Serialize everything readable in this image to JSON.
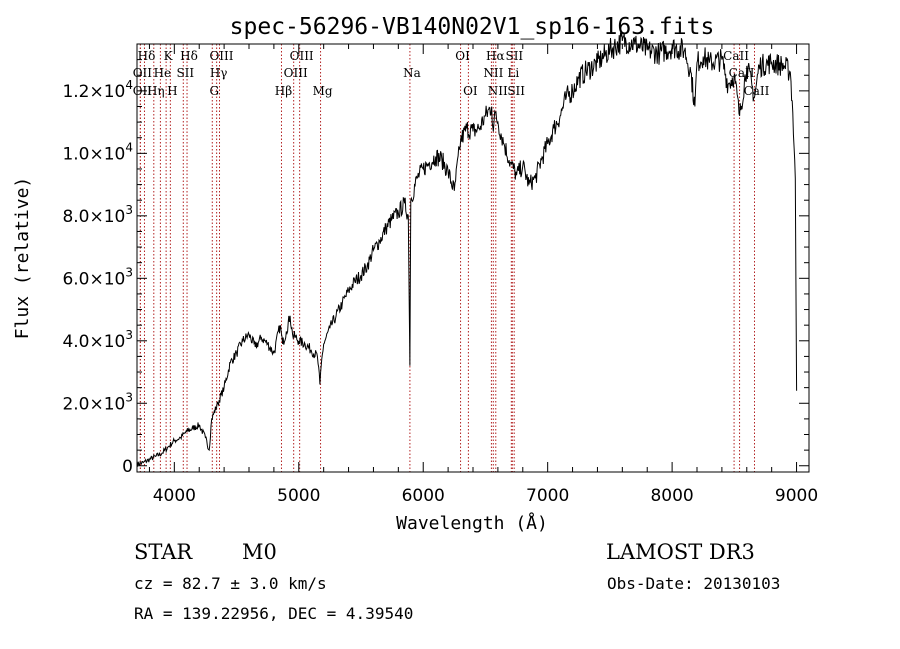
{
  "chart_data": {
    "type": "line",
    "title": "spec-56296-VB140N02V1_sp16-163.fits",
    "xlabel": "Wavelength (Å)",
    "ylabel": "Flux (relative)",
    "xlim": [
      3700,
      9100
    ],
    "ylim": [
      -200,
      13500
    ],
    "x_ticks": [
      4000,
      5000,
      6000,
      7000,
      8000,
      9000
    ],
    "x_tick_labels": [
      "4000",
      "5000",
      "6000",
      "7000",
      "8000",
      "9000"
    ],
    "y_ticks": [
      0,
      2000,
      4000,
      6000,
      8000,
      10000,
      12000
    ],
    "y_tick_labels": [
      {
        "mant": "0",
        "exp": ""
      },
      {
        "mant": "2.0×10",
        "exp": "3"
      },
      {
        "mant": "4.0×10",
        "exp": "3"
      },
      {
        "mant": "6.0×10",
        "exp": "3"
      },
      {
        "mant": "8.0×10",
        "exp": "3"
      },
      {
        "mant": "1.0×10",
        "exp": "4"
      },
      {
        "mant": "1.2×10",
        "exp": "4"
      }
    ],
    "series": [
      {
        "name": "spectrum",
        "x": [
          3700,
          3750,
          3800,
          3850,
          3900,
          3950,
          4000,
          4050,
          4100,
          4150,
          4200,
          4250,
          4280,
          4300,
          4350,
          4400,
          4450,
          4500,
          4550,
          4600,
          4650,
          4700,
          4750,
          4800,
          4850,
          4870,
          4900,
          4930,
          4950,
          5000,
          5050,
          5100,
          5150,
          5170,
          5180,
          5200,
          5250,
          5300,
          5350,
          5400,
          5450,
          5500,
          5550,
          5600,
          5650,
          5700,
          5750,
          5800,
          5850,
          5880,
          5893,
          5900,
          5950,
          6000,
          6050,
          6100,
          6150,
          6200,
          6250,
          6300,
          6350,
          6400,
          6450,
          6500,
          6550,
          6563,
          6580,
          6600,
          6650,
          6700,
          6750,
          6800,
          6850,
          6900,
          6950,
          7000,
          7050,
          7100,
          7150,
          7200,
          7250,
          7300,
          7400,
          7500,
          7600,
          7700,
          7800,
          7900,
          8000,
          8100,
          8150,
          8183,
          8200,
          8250,
          8300,
          8400,
          8450,
          8498,
          8542,
          8600,
          8662,
          8700,
          8800,
          8900,
          8950,
          8970,
          8990,
          9000
        ],
        "y": [
          50,
          100,
          200,
          300,
          400,
          600,
          800,
          900,
          1100,
          1200,
          1300,
          900,
          500,
          1500,
          2000,
          2500,
          3300,
          3600,
          4000,
          4200,
          3800,
          4100,
          3900,
          3600,
          4500,
          3900,
          4300,
          4800,
          4200,
          4000,
          3900,
          3700,
          3500,
          2600,
          3200,
          3900,
          4400,
          4800,
          5200,
          5600,
          5900,
          6100,
          6400,
          6900,
          7200,
          7600,
          7900,
          8100,
          8400,
          8000,
          3200,
          8500,
          9200,
          9500,
          9700,
          9900,
          9800,
          9400,
          8800,
          10400,
          10800,
          10700,
          10800,
          11200,
          11500,
          10700,
          11300,
          11000,
          10300,
          9700,
          9300,
          9600,
          9000,
          9200,
          9800,
          10300,
          10800,
          11200,
          11800,
          12000,
          12400,
          12600,
          12900,
          13300,
          13600,
          13500,
          13300,
          13200,
          13400,
          13300,
          12600,
          11500,
          12900,
          13100,
          12900,
          13000,
          12200,
          12500,
          11200,
          12800,
          11800,
          12800,
          12900,
          12800,
          12600,
          11300,
          9200,
          2400
        ]
      }
    ],
    "emission_lines": [
      {
        "name": "Hδ",
        "wl": 3760,
        "row": 0
      },
      {
        "name": "K",
        "wl": 3934,
        "row": 0
      },
      {
        "name": "Hδ",
        "wl": 4102,
        "row": 0
      },
      {
        "name": "OIII",
        "wl": 4363,
        "row": 0
      },
      {
        "name": "OIII",
        "wl": 5007,
        "row": 0
      },
      {
        "name": "OI",
        "wl": 6300,
        "row": 0
      },
      {
        "name": "Hα",
        "wl": 6563,
        "row": 0
      },
      {
        "name": "SII",
        "wl": 6716,
        "row": 0
      },
      {
        "name": "CaII",
        "wl": 8498,
        "row": 0
      },
      {
        "name": "OII",
        "wl": 3727,
        "row": 1
      },
      {
        "name": "He",
        "wl": 3888,
        "row": 1
      },
      {
        "name": "SII",
        "wl": 4072,
        "row": 1
      },
      {
        "name": "Hγ",
        "wl": 4340,
        "row": 1
      },
      {
        "name": "OIII",
        "wl": 4959,
        "row": 1
      },
      {
        "name": "Na",
        "wl": 5893,
        "row": 1
      },
      {
        "name": "NII",
        "wl": 6548,
        "row": 1
      },
      {
        "name": "Li",
        "wl": 6708,
        "row": 1
      },
      {
        "name": "CaII",
        "wl": 8542,
        "row": 1
      },
      {
        "name": "OII",
        "wl": 3727,
        "row": 2
      },
      {
        "name": "Hη",
        "wl": 3835,
        "row": 2
      },
      {
        "name": "H",
        "wl": 3968,
        "row": 2
      },
      {
        "name": "G",
        "wl": 4305,
        "row": 2
      },
      {
        "name": "Hβ",
        "wl": 4861,
        "row": 2
      },
      {
        "name": "Mg",
        "wl": 5175,
        "row": 2
      },
      {
        "name": "OI",
        "wl": 6363,
        "row": 2
      },
      {
        "name": "NII",
        "wl": 6583,
        "row": 2
      },
      {
        "name": "SII",
        "wl": 6731,
        "row": 2
      },
      {
        "name": "CaII",
        "wl": 8662,
        "row": 2
      }
    ]
  },
  "info": {
    "object_class": "STAR",
    "subclass": "M0",
    "survey": "LAMOST DR3",
    "redshift": "cz = 82.7 ± 3.0 km/s",
    "obs_date": "Obs-Date: 20130103",
    "coords": "RA = 139.22956, DEC =   4.39540"
  }
}
